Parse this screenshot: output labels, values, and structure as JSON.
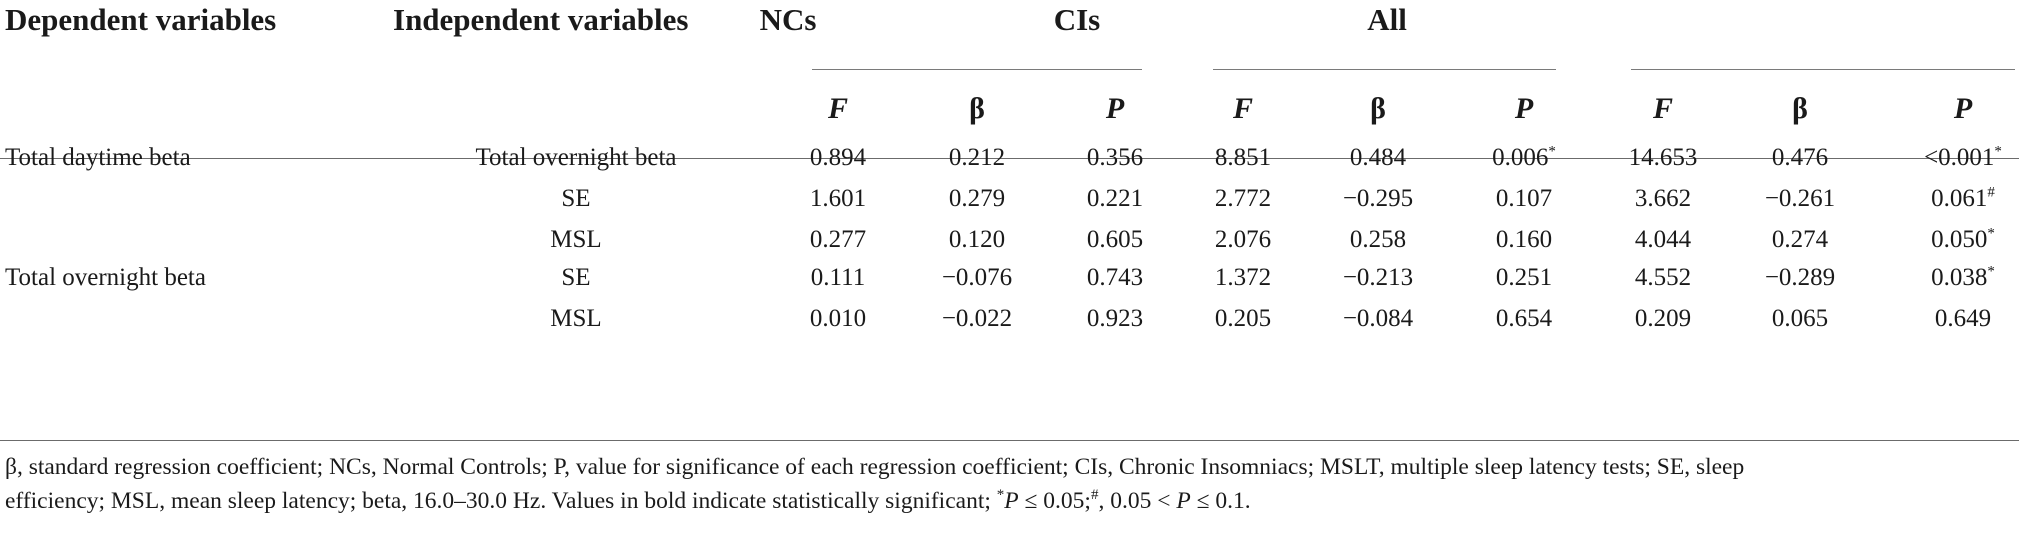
{
  "headers": {
    "dependent": "Dependent variables",
    "independent": "Independent variables",
    "groups": [
      "NCs",
      "CIs",
      "All"
    ],
    "stats": [
      "F",
      "β",
      "P"
    ]
  },
  "rows": [
    {
      "dep": "Total daytime beta",
      "indep": "Total overnight beta",
      "values": [
        "0.894",
        "0.212",
        "0.356",
        "8.851",
        "0.484",
        "0.006",
        "14.653",
        "0.476",
        "<0.001"
      ],
      "marks": [
        "",
        "",
        "",
        "",
        "",
        "*",
        "",
        "",
        "*"
      ]
    },
    {
      "dep": "",
      "indep": "SE",
      "values": [
        "1.601",
        "0.279",
        "0.221",
        "2.772",
        "−0.295",
        "0.107",
        "3.662",
        "−0.261",
        "0.061"
      ],
      "marks": [
        "",
        "",
        "",
        "",
        "",
        "",
        "",
        "",
        "#"
      ]
    },
    {
      "dep": "",
      "indep": "MSL",
      "values": [
        "0.277",
        "0.120",
        "0.605",
        "2.076",
        "0.258",
        "0.160",
        "4.044",
        "0.274",
        "0.050"
      ],
      "marks": [
        "",
        "",
        "",
        "",
        "",
        "",
        "",
        "",
        "*"
      ]
    },
    {
      "dep": "Total overnight beta",
      "indep": "SE",
      "values": [
        "0.111",
        "−0.076",
        "0.743",
        "1.372",
        "−0.213",
        "0.251",
        "4.552",
        "−0.289",
        "0.038"
      ],
      "marks": [
        "",
        "",
        "",
        "",
        "",
        "",
        "",
        "",
        "*"
      ]
    },
    {
      "dep": "",
      "indep": "MSL",
      "values": [
        "0.010",
        "−0.022",
        "0.923",
        "0.205",
        "−0.084",
        "0.654",
        "0.209",
        "0.065",
        "0.649"
      ],
      "marks": [
        "",
        "",
        "",
        "",
        "",
        "",
        "",
        "",
        ""
      ]
    }
  ],
  "footnote": {
    "line1": "β, standard regression coefficient; NCs, Normal Controls; P, value for significance of each regression coefficient; CIs, Chronic Insomniacs; MSLT, multiple sleep latency tests; SE, sleep",
    "line2_a": "efficiency; MSL, mean sleep latency; beta, 16.0–30.0 Hz. Values in bold indicate statistically significant; ",
    "sym_star": "*",
    "p_letter": "P",
    "line2_b": " ≤ 0.05;",
    "sym_hash": "#",
    "line2_c": ", 0.05 < ",
    "line2_d": " ≤ 0.1."
  }
}
